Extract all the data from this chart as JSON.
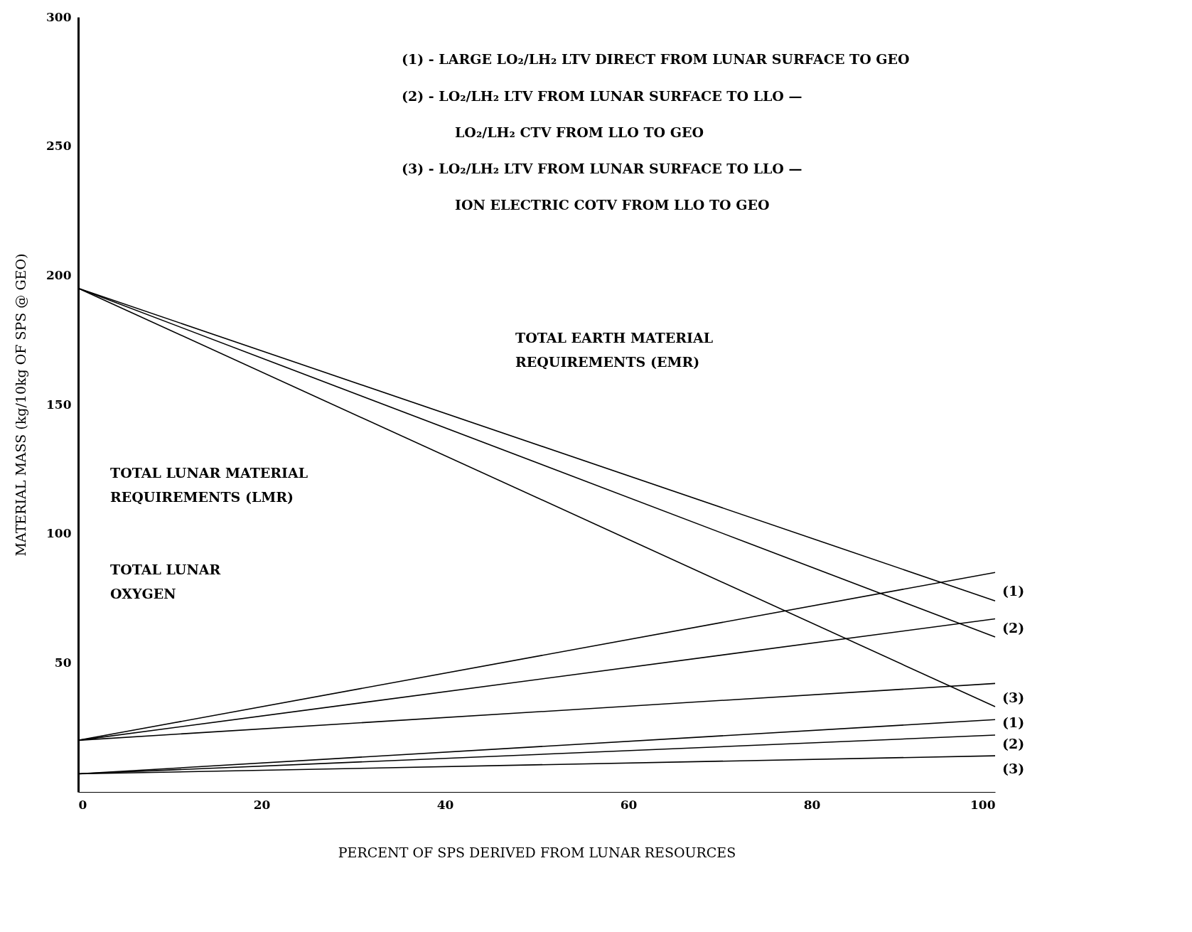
{
  "chart_data": {
    "type": "line",
    "xlabel": "PERCENT OF SPS DERIVED FROM LUNAR RESOURCES",
    "ylabel": "MATERIAL MASS (kg/10kg OF SPS @ GEO)",
    "xlim": [
      0,
      100
    ],
    "ylim": [
      0,
      300
    ],
    "xticks": [
      0,
      20,
      40,
      60,
      80,
      100
    ],
    "yticks": [
      50,
      100,
      150,
      200,
      250,
      300
    ],
    "grid": false,
    "legend": false,
    "marker": "none",
    "line_style": "solid",
    "x": [
      0,
      100
    ],
    "series": [
      {
        "color": "#000000",
        "values": [
          195,
          74
        ]
      },
      {
        "color": "#000000",
        "values": [
          195,
          60
        ]
      },
      {
        "color": "#000000",
        "values": [
          195,
          33
        ]
      },
      {
        "color": "#000000",
        "values": [
          20,
          85
        ]
      },
      {
        "color": "#000000",
        "values": [
          20,
          67
        ]
      },
      {
        "color": "#000000",
        "values": [
          20,
          42
        ]
      },
      {
        "color": "#000000",
        "values": [
          7,
          28
        ]
      },
      {
        "color": "#000000",
        "values": [
          7,
          22
        ]
      },
      {
        "color": "#000000",
        "values": [
          7,
          14
        ]
      }
    ],
    "annotations": [
      "(1) - LARGE LO₂/LH₂ LTV DIRECT FROM LUNAR SURFACE TO GEO",
      "(2) - LO₂/LH₂ LTV FROM LUNAR SURFACE TO LLO —",
      "LO₂/LH₂ CTV FROM LLO TO GEO",
      "(3) - LO₂/LH₂ LTV FROM LUNAR SURFACE TO LLO —",
      "ION ELECTRIC COTV FROM LLO TO GEO",
      "TOTAL EARTH MATERIAL\nREQUIREMENTS (EMR)",
      "TOTAL LUNAR MATERIAL\nREQUIREMENTS (LMR)",
      "TOTAL LUNAR\nOXYGEN",
      "(1)",
      "(2)",
      "(3)",
      "(1)",
      "(2)",
      "(3)"
    ]
  }
}
